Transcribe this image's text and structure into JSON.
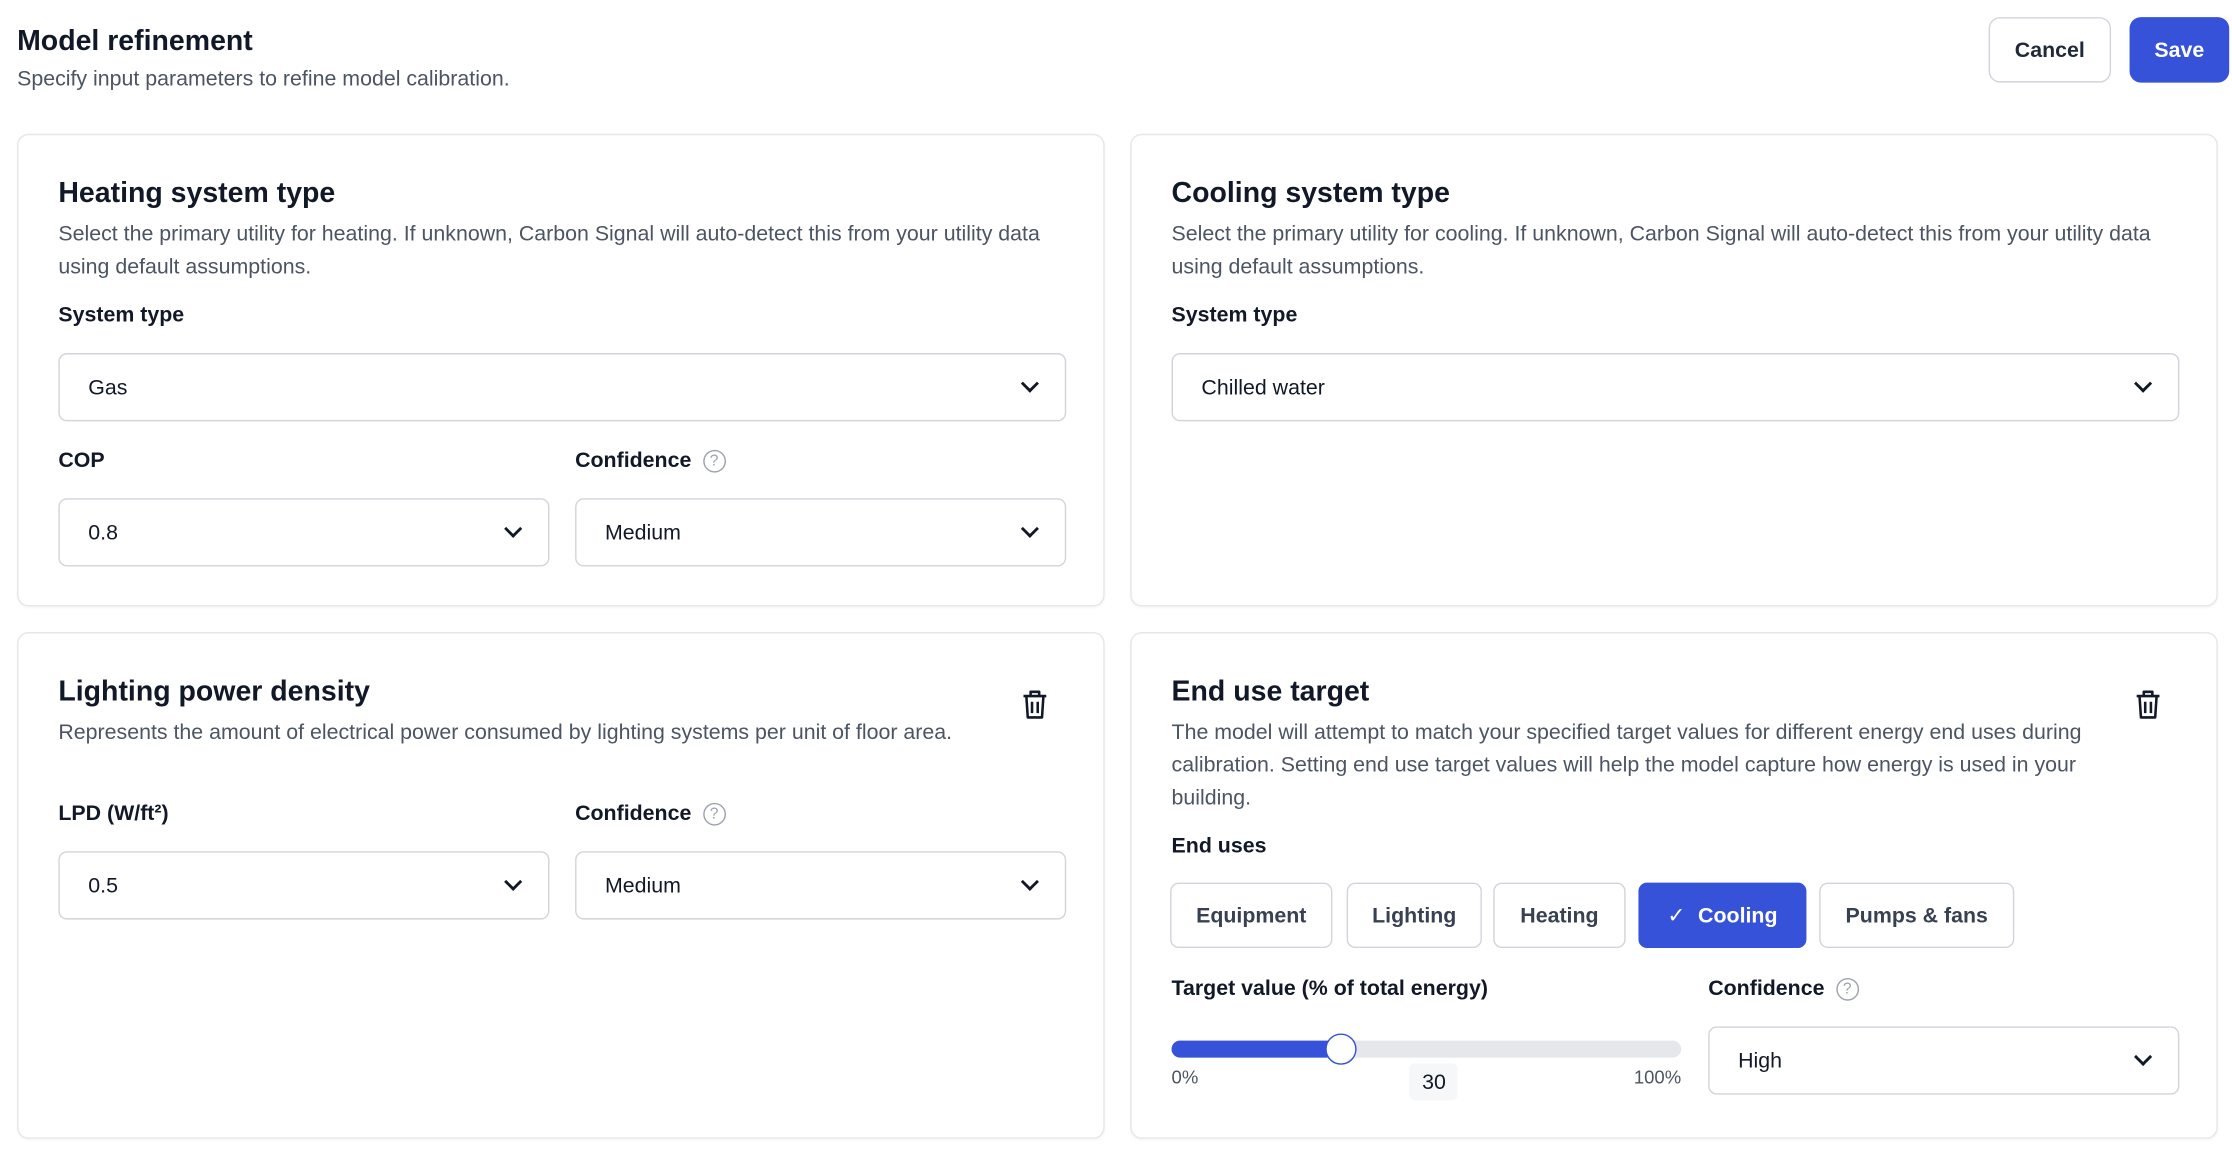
{
  "header": {
    "title": "Model refinement",
    "subtitle": "Specify input parameters to refine model calibration.",
    "cancel_label": "Cancel",
    "save_label": "Save"
  },
  "colors": {
    "accent": "#3652d9",
    "border": "#e5e7eb"
  },
  "heating": {
    "title": "Heating system type",
    "description": "Select the primary utility for heating. If unknown, Carbon Signal will auto-detect this from your utility data using default assumptions.",
    "system_type_label": "System type",
    "system_type_value": "Gas",
    "cop_label": "COP",
    "cop_value": "0.8",
    "confidence_label": "Confidence",
    "confidence_value": "Medium"
  },
  "cooling": {
    "title": "Cooling system type",
    "description": "Select the primary utility for cooling. If unknown, Carbon Signal will auto-detect this from your utility data using default assumptions.",
    "system_type_label": "System type",
    "system_type_value": "Chilled water"
  },
  "lighting": {
    "title": "Lighting power density",
    "description": "Represents the amount of electrical power consumed by lighting systems per unit of floor area.",
    "lpd_label": "LPD (W/ft²)",
    "lpd_value": "0.5",
    "confidence_label": "Confidence",
    "confidence_value": "Medium",
    "delete_icon": "trash-icon"
  },
  "end_use": {
    "title": "End use target",
    "description": "The model will attempt to match your specified target values for different energy end uses during calibration. Setting end use target values will help the model capture how energy is used in your building.",
    "end_uses_label": "End uses",
    "chips": [
      "Equipment",
      "Lighting",
      "Heating",
      "Cooling",
      "Pumps & fans"
    ],
    "selected": "Cooling",
    "target_label": "Target value (% of total energy)",
    "slider_min": "0%",
    "slider_max": "100%",
    "slider_value": "30",
    "confidence_label": "Confidence",
    "confidence_value": "High",
    "delete_icon": "trash-icon"
  }
}
